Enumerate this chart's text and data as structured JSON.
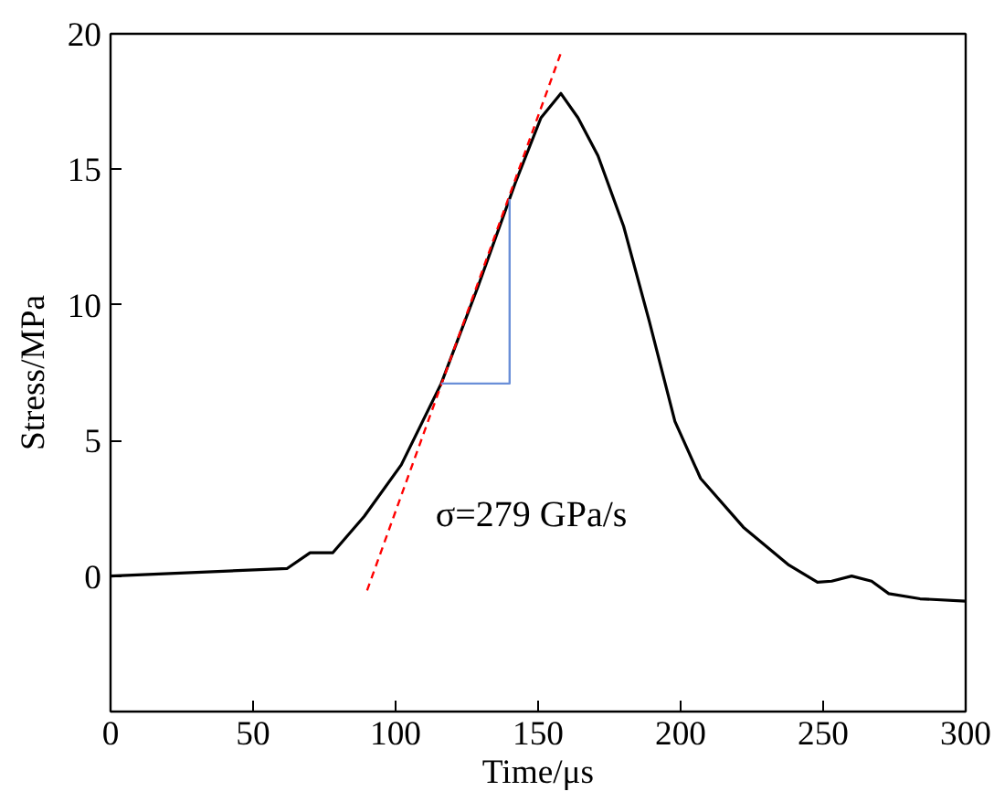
{
  "chart_data": {
    "type": "line",
    "xlabel": "Time/μs",
    "ylabel": "Stress/MPa",
    "xlim": [
      0,
      300
    ],
    "ylim": [
      -5,
      20
    ],
    "xticks": [
      0,
      50,
      100,
      150,
      200,
      250,
      300
    ],
    "yticks": [
      0,
      5,
      10,
      15,
      20
    ],
    "grid": false,
    "marker": "none",
    "series": [
      {
        "color": "#000000",
        "line_style": "solid",
        "x": [
          0,
          62,
          70,
          78,
          89,
          102,
          116,
          129,
          142,
          151,
          158,
          164,
          171,
          180,
          189,
          198,
          207,
          222,
          238,
          248,
          253,
          260,
          267,
          273,
          284,
          300
        ],
        "values": [
          0,
          0.28,
          0.86,
          0.86,
          2.2,
          4.1,
          7.1,
          10.7,
          14.5,
          16.9,
          17.8,
          16.9,
          15.5,
          12.9,
          9.4,
          5.7,
          3.6,
          1.8,
          0.4,
          -0.23,
          -0.19,
          0,
          -0.19,
          -0.65,
          -0.84,
          -0.93
        ]
      },
      {
        "color": "#ff0000",
        "line_style": "dashed",
        "x": [
          90,
          158
        ],
        "values": [
          -0.53,
          19.3
        ]
      },
      {
        "color": "#6a8fd8",
        "line_style": "solid",
        "x": [
          116,
          140,
          140
        ],
        "values": [
          7.1,
          7.1,
          13.9
        ]
      }
    ],
    "annotations": [
      "σ=279 GPa/s"
    ]
  }
}
